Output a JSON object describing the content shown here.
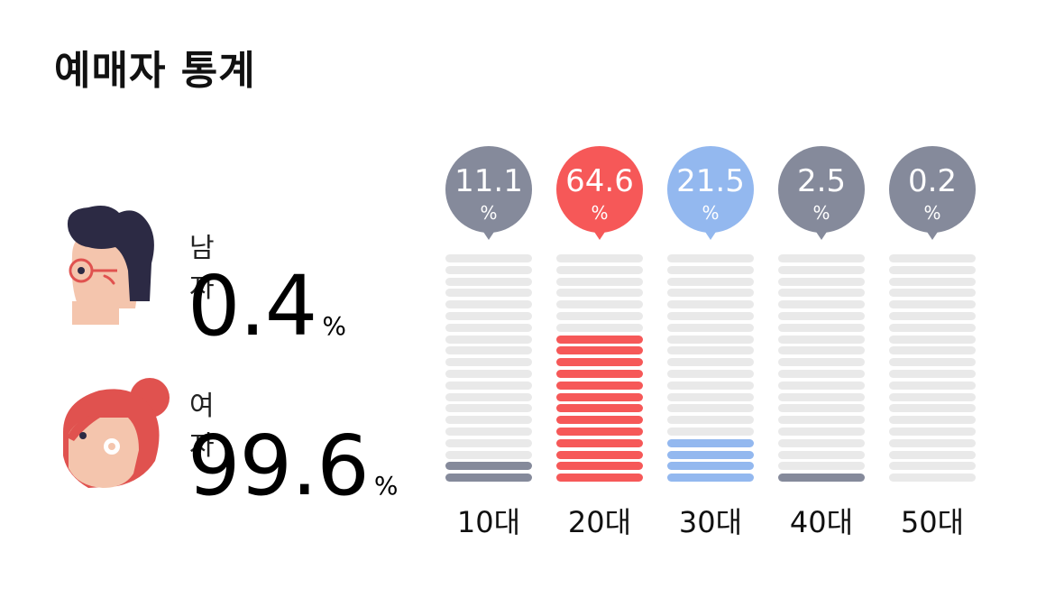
{
  "title": "예매자 통계",
  "gender": {
    "male": {
      "label": "남자",
      "value": "0.4",
      "unit": "%"
    },
    "female": {
      "label": "여자",
      "value": "99.6",
      "unit": "%"
    }
  },
  "colors": {
    "gray": "#858a9b",
    "red": "#f65858",
    "blue": "#93b8ef",
    "empty": "#e9e9e9"
  },
  "chart_data": {
    "type": "bar",
    "categories": [
      "10대",
      "20대",
      "30대",
      "40대",
      "50대"
    ],
    "values": [
      11.1,
      64.6,
      21.5,
      2.5,
      0.2
    ],
    "value_labels": [
      "11.1",
      "64.6",
      "21.5",
      "2.5",
      "0.2"
    ],
    "unit": "%",
    "bar_colors": [
      "#858a9b",
      "#f65858",
      "#93b8ef",
      "#858a9b",
      "#858a9b"
    ],
    "segments_total": 20,
    "segments_filled": [
      2,
      13,
      4,
      1,
      0
    ],
    "ylim": [
      0,
      100
    ]
  }
}
